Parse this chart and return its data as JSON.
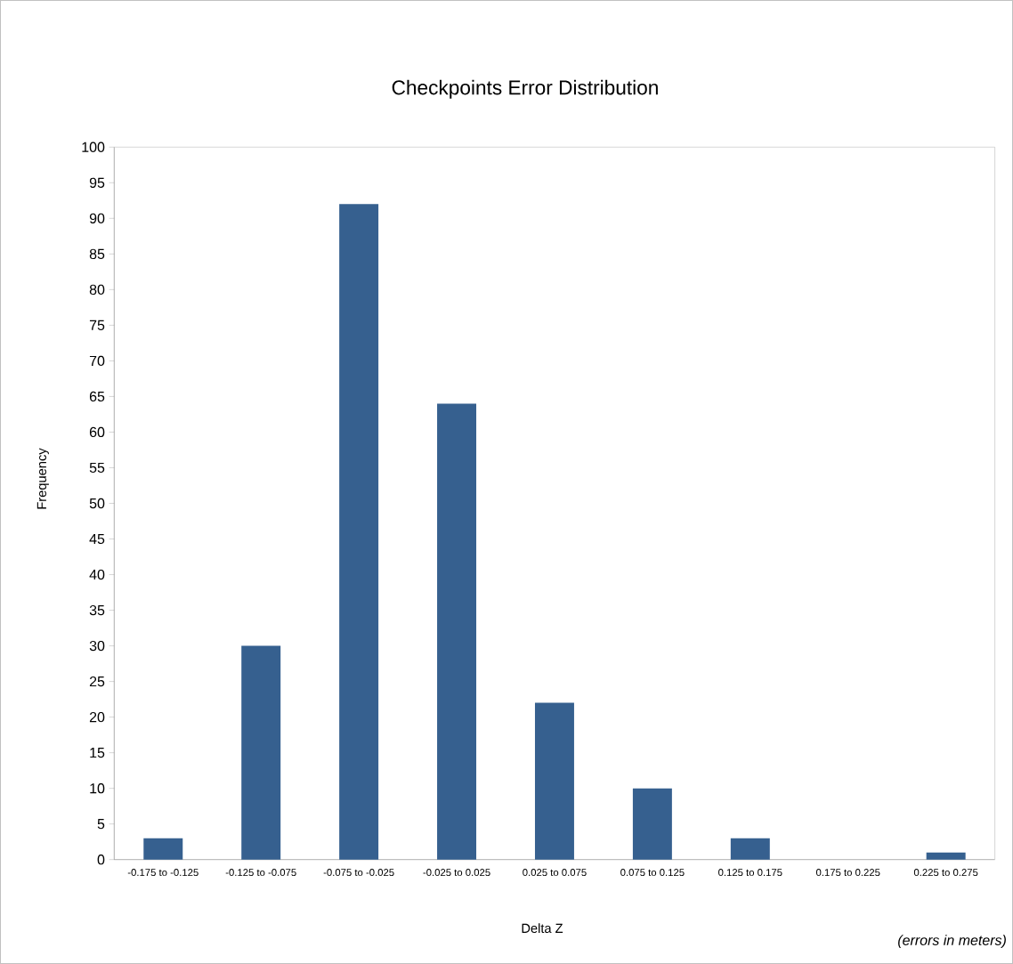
{
  "chart_data": {
    "type": "bar",
    "title": "Checkpoints Error Distribution",
    "xlabel": "Delta Z",
    "ylabel": "Frequency",
    "categories": [
      "-0.175 to -0.125",
      "-0.125 to -0.075",
      "-0.075 to -0.025",
      "-0.025 to 0.025",
      "0.025 to 0.075",
      "0.075 to 0.125",
      "0.125 to 0.175",
      "0.175 to 0.225",
      "0.225 to 0.275"
    ],
    "values": [
      3,
      30,
      92,
      64,
      22,
      10,
      3,
      0,
      1
    ],
    "color": "#36608f",
    "ylim": [
      0,
      100
    ],
    "yticks": [
      0,
      5,
      10,
      15,
      20,
      25,
      30,
      35,
      40,
      45,
      50,
      55,
      60,
      65,
      70,
      75,
      80,
      85,
      90,
      95,
      100
    ],
    "annotations": [
      "(errors in meters)"
    ]
  }
}
